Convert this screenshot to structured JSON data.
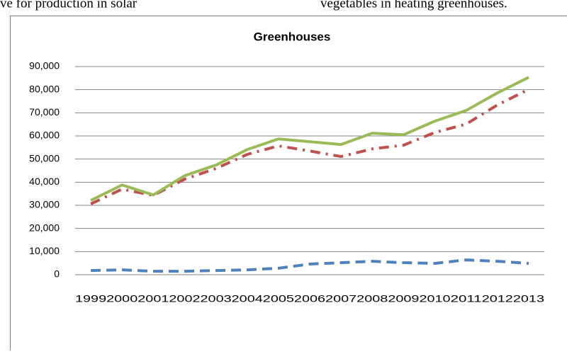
{
  "header": {
    "left": "ve  for  production  in  solar",
    "right": "vegetables in heating greenhouses."
  },
  "chart_data": {
    "type": "line",
    "title": "Greenhouses",
    "categories": [
      "1999",
      "2000",
      "2001",
      "2002",
      "2003",
      "2004",
      "2005",
      "2006",
      "2007",
      "2008",
      "2009",
      "2010",
      "2011",
      "2012",
      "2013"
    ],
    "series": [
      {
        "color": "#4f81bd",
        "style": "dashed",
        "values": [
          1800,
          2100,
          1500,
          1500,
          1800,
          2100,
          2800,
          4600,
          5200,
          5800,
          5200,
          4900,
          6400,
          5800,
          4900
        ]
      },
      {
        "color": "#c0504d",
        "style": "dash-dot",
        "values": [
          30600,
          37000,
          34300,
          41300,
          45900,
          52000,
          55700,
          53500,
          51100,
          54400,
          56000,
          61500,
          65100,
          73400,
          80100
        ]
      },
      {
        "color": "#9bbb59",
        "style": "solid",
        "values": [
          32100,
          38800,
          34500,
          42800,
          47400,
          54100,
          58700,
          57500,
          56300,
          61200,
          60500,
          66400,
          71000,
          78600,
          85300
        ]
      }
    ],
    "ylim": [
      0,
      90000
    ],
    "yticks": [
      0,
      {
        "value": 10000,
        "label": "10,000"
      },
      {
        "value": 20000,
        "label": "20,000"
      },
      {
        "value": 30000,
        "label": "30,000"
      },
      {
        "value": 40000,
        "label": "40,000"
      },
      {
        "value": 50000,
        "label": "50,000"
      },
      {
        "value": 60000,
        "label": "60,000"
      },
      {
        "value": 70000,
        "label": "70,000"
      },
      {
        "value": 80000,
        "label": "80,000"
      },
      {
        "value": 90000,
        "label": "90,000"
      }
    ],
    "grid": true
  }
}
